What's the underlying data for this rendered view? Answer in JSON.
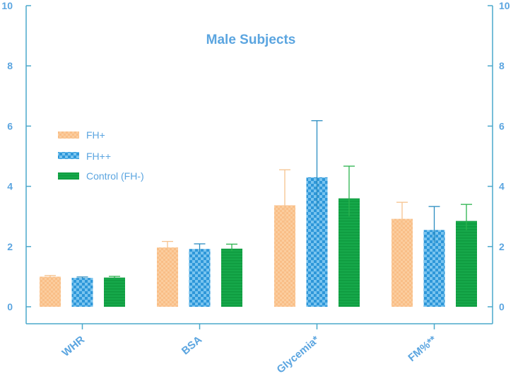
{
  "chart_data": {
    "type": "bar",
    "title": "Male Subjects",
    "categories": [
      "WHR",
      "BSA",
      "Glycemia*",
      "FM%**"
    ],
    "ylim": [
      0,
      10
    ],
    "yticks": [
      0,
      2,
      4,
      6,
      8,
      10
    ],
    "ytick_labels": [
      "0",
      "2",
      "4",
      "6",
      "8",
      "10"
    ],
    "right_axis_ticks": [
      "0",
      "2",
      "4",
      "6",
      "8",
      "10"
    ],
    "grid": false,
    "legend_position": "upper-left",
    "series": [
      {
        "name": "FH+",
        "values": [
          1.0,
          1.97,
          3.37,
          2.92
        ],
        "errors": [
          0.04,
          0.2,
          1.18,
          0.55
        ]
      },
      {
        "name": "FH++",
        "values": [
          0.96,
          1.92,
          4.3,
          2.55
        ],
        "errors": [
          0.03,
          0.17,
          1.88,
          0.78
        ]
      },
      {
        "name": "Control (FH-)",
        "values": [
          0.97,
          1.93,
          3.6,
          2.85
        ],
        "errors": [
          0.04,
          0.15,
          1.07,
          0.55
        ]
      }
    ],
    "colors": {
      "axis": "#4aa8cc",
      "label": "#5ba5e0",
      "series": [
        "#f9be87",
        "#2e97d9",
        "#16a84a"
      ],
      "error_bars": [
        "#f6c38f",
        "#2a8cc0",
        "#2bb34d"
      ]
    }
  }
}
